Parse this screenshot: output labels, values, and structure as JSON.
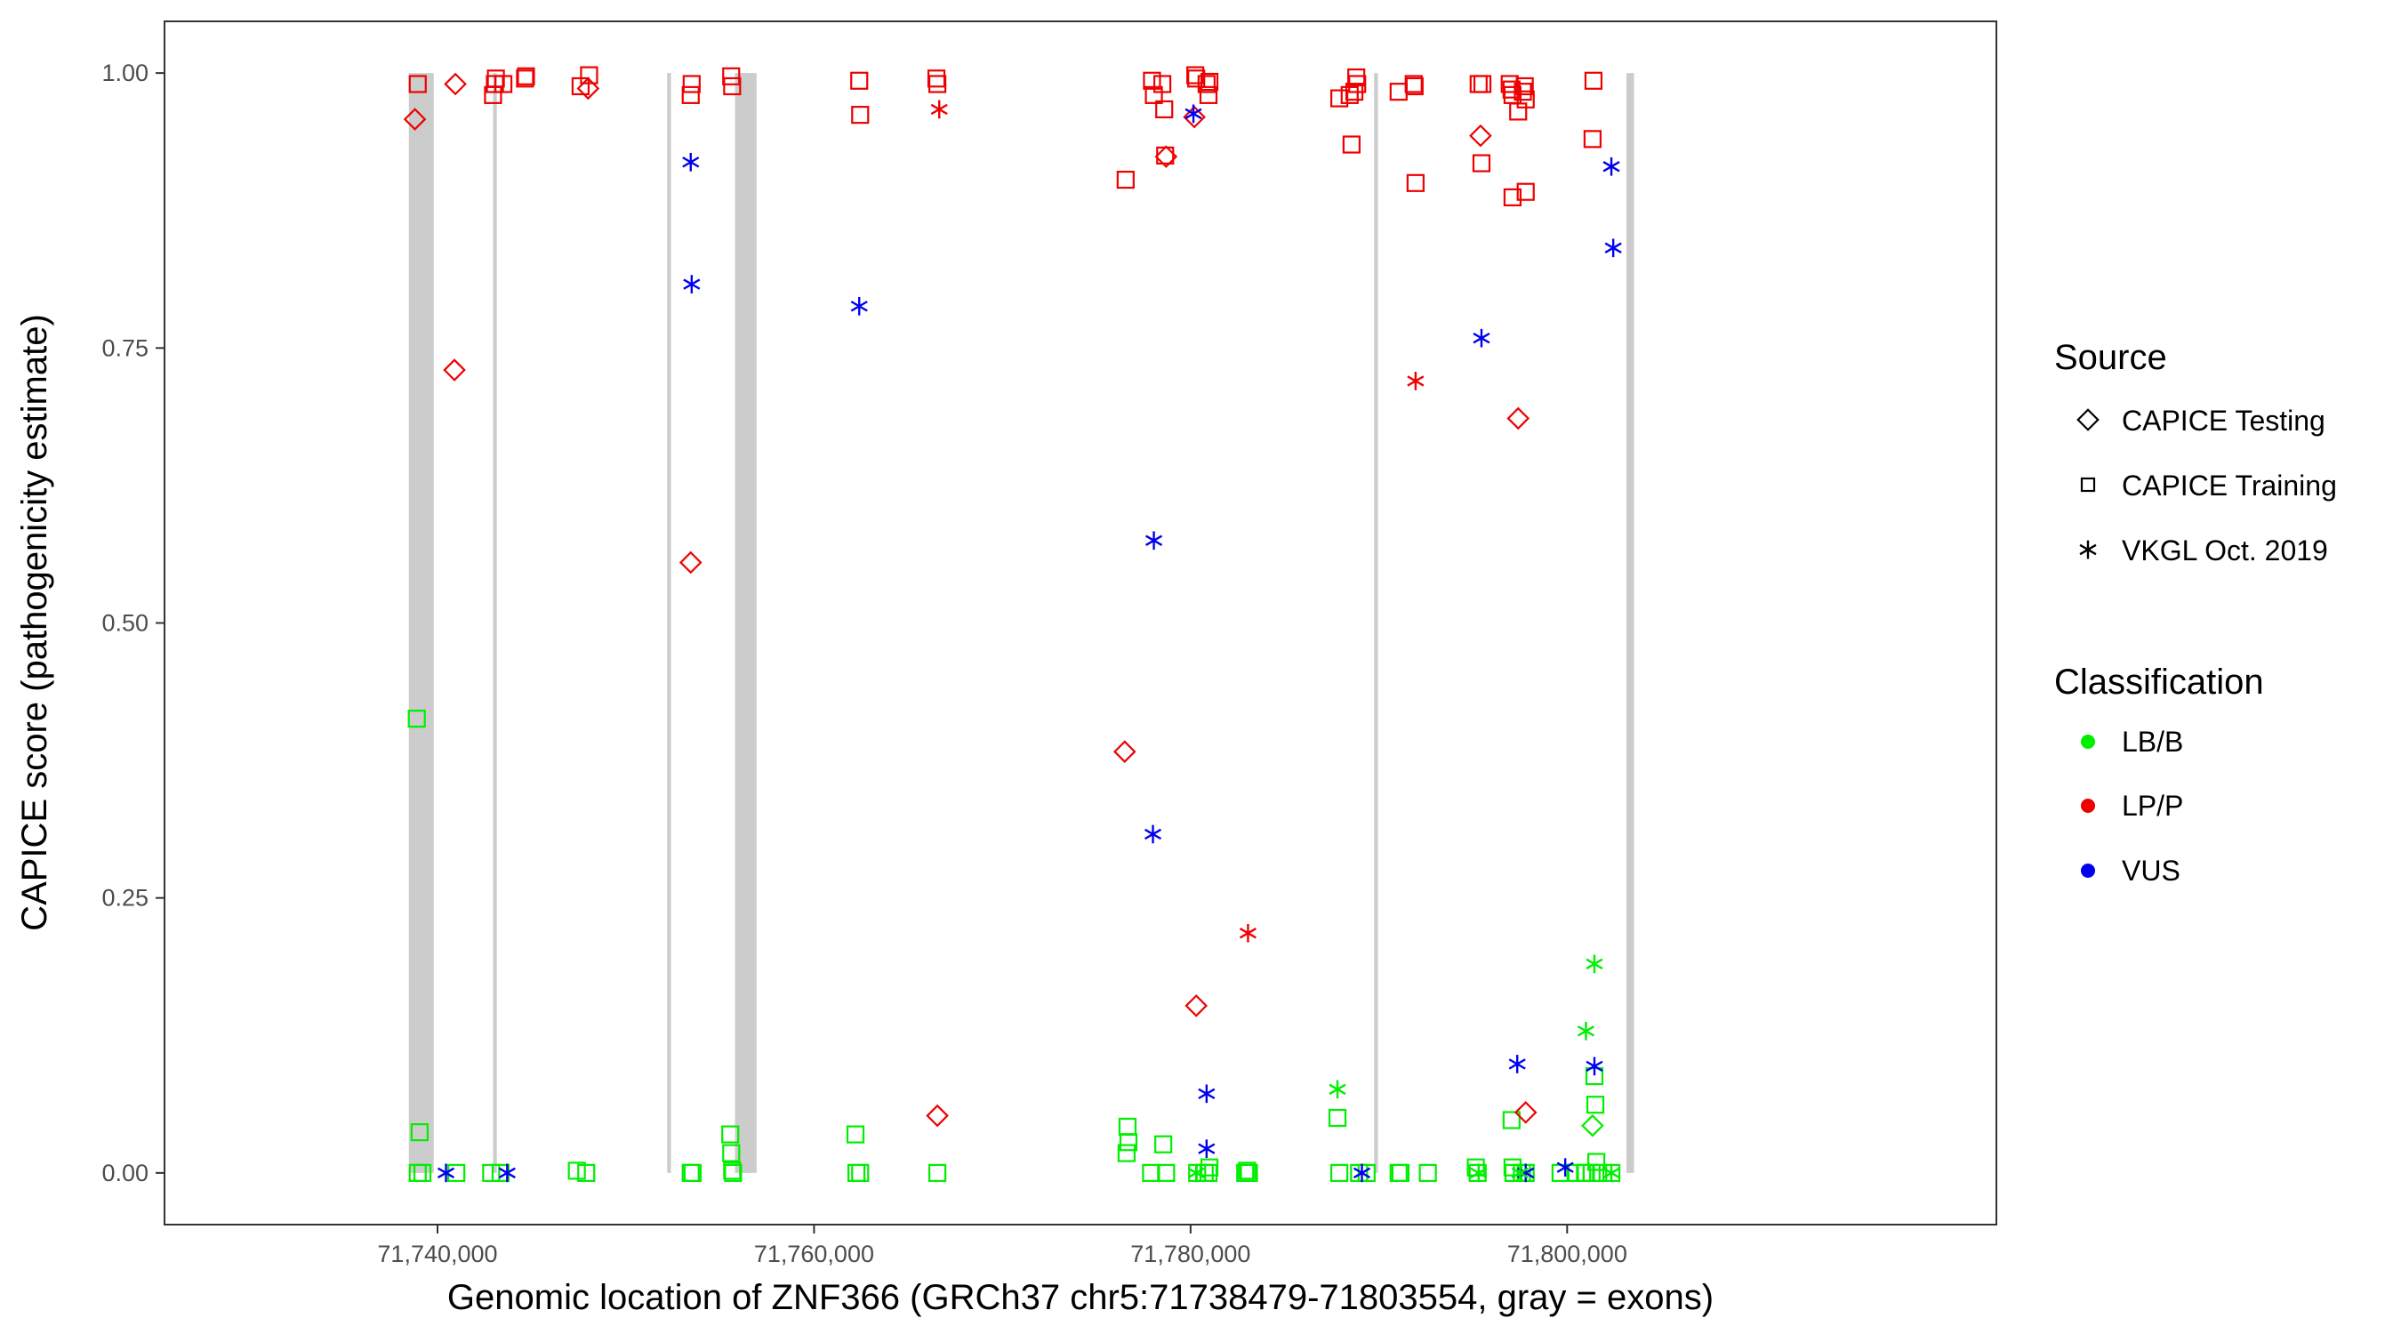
{
  "chart_data": {
    "type": "scatter",
    "title": "",
    "xlabel": "Genomic location of ZNF366 (GRCh37 chr5:71738479-71803554, gray = exons)",
    "ylabel": "CAPICE score (pathogenicity estimate)",
    "xlim": [
      71725500,
      71822800
    ],
    "ylim": [
      -0.047,
      1.047
    ],
    "x_ticks": [
      71740000,
      71760000,
      71780000,
      71800000
    ],
    "x_tick_labels": [
      "71,740,000",
      "71,760,000",
      "71,780,000",
      "71,800,000"
    ],
    "y_ticks": [
      0,
      0.25,
      0.5,
      0.75,
      1.0
    ],
    "y_tick_labels": [
      "0.00",
      "0.25",
      "0.50",
      "0.75",
      "1.00"
    ],
    "grid": false,
    "exons": [
      [
        71738479,
        71739800
      ],
      [
        71742950,
        71743150
      ],
      [
        71752200,
        71752400
      ],
      [
        71755800,
        71756950
      ],
      [
        71789750,
        71789950
      ],
      [
        71803150,
        71803554
      ]
    ],
    "legend_position": "right",
    "legend": {
      "source_title": "Source",
      "source_items": [
        {
          "label": "CAPICE Testing",
          "shape": "diamond"
        },
        {
          "label": "CAPICE Training",
          "shape": "square"
        },
        {
          "label": "VKGL Oct. 2019",
          "shape": "asterisk"
        }
      ],
      "class_title": "Classification",
      "class_items": [
        {
          "label": "LB/B",
          "color": "#00ee00"
        },
        {
          "label": "LP/P",
          "color": "#ee0000"
        },
        {
          "label": "VUS",
          "color": "#0000ee"
        }
      ]
    },
    "series": [
      {
        "source": "CAPICE Training",
        "classification": "LP/P",
        "shape": "square",
        "color": "#ee0000",
        "points": [
          [
            71738950,
            0.99
          ],
          [
            71742950,
            0.98
          ],
          [
            71743050,
            0.99
          ],
          [
            71743100,
            0.995
          ],
          [
            71743500,
            0.99
          ],
          [
            71744650,
            0.995
          ],
          [
            71744700,
            0.997
          ],
          [
            71747600,
            0.988
          ],
          [
            71748050,
            0.998
          ],
          [
            71753450,
            0.98
          ],
          [
            71753500,
            0.99
          ],
          [
            71755600,
            0.997
          ],
          [
            71755650,
            0.988
          ],
          [
            71762400,
            0.993
          ],
          [
            71762450,
            0.962
          ],
          [
            71766500,
            0.995
          ],
          [
            71766550,
            0.99
          ],
          [
            71776550,
            0.903
          ],
          [
            71777950,
            0.993
          ],
          [
            71778050,
            0.98
          ],
          [
            71778500,
            0.99
          ],
          [
            71778600,
            0.967
          ],
          [
            71778650,
            0.925
          ],
          [
            71780250,
            0.998
          ],
          [
            71780300,
            0.995
          ],
          [
            71780850,
            0.99
          ],
          [
            71780950,
            0.98
          ],
          [
            71781000,
            0.992
          ],
          [
            71787900,
            0.977
          ],
          [
            71788450,
            0.98
          ],
          [
            71788550,
            0.935
          ],
          [
            71788700,
            0.983
          ],
          [
            71788800,
            0.996
          ],
          [
            71788850,
            0.99
          ],
          [
            71791050,
            0.983
          ],
          [
            71791850,
            0.99
          ],
          [
            71791900,
            0.988
          ],
          [
            71791950,
            0.9
          ],
          [
            71795300,
            0.99
          ],
          [
            71795450,
            0.918
          ],
          [
            71795500,
            0.99
          ],
          [
            71796950,
            0.99
          ],
          [
            71797050,
            0.985
          ],
          [
            71797100,
            0.98
          ],
          [
            71797100,
            0.887
          ],
          [
            71797400,
            0.965
          ],
          [
            71797650,
            0.983
          ],
          [
            71797750,
            0.988
          ],
          [
            71797800,
            0.976
          ],
          [
            71797800,
            0.892
          ],
          [
            71801350,
            0.94
          ],
          [
            71801400,
            0.993
          ]
        ]
      },
      {
        "source": "CAPICE Training",
        "classification": "LB/B",
        "shape": "square",
        "color": "#00ee00",
        "points": [
          [
            71738900,
            0.413
          ],
          [
            71739050,
            0.037
          ],
          [
            71738950,
            0.0
          ],
          [
            71739200,
            0.0
          ],
          [
            71741000,
            0.0
          ],
          [
            71742850,
            0.0
          ],
          [
            71743350,
            0.0
          ],
          [
            71747400,
            0.002
          ],
          [
            71747900,
            0.0
          ],
          [
            71753450,
            0.0
          ],
          [
            71753550,
            0.0
          ],
          [
            71755550,
            0.035
          ],
          [
            71755600,
            0.018
          ],
          [
            71755650,
            0.002
          ],
          [
            71755700,
            0.0
          ],
          [
            71762200,
            0.035
          ],
          [
            71762250,
            0.0
          ],
          [
            71762450,
            0.0
          ],
          [
            71766550,
            0.0
          ],
          [
            71776650,
            0.042
          ],
          [
            71776700,
            0.028
          ],
          [
            71776600,
            0.018
          ],
          [
            71777900,
            0.0
          ],
          [
            71778550,
            0.026
          ],
          [
            71778700,
            0.0
          ],
          [
            71780350,
            0.0
          ],
          [
            71780750,
            0.0
          ],
          [
            71780950,
            0.0
          ],
          [
            71781000,
            0.005
          ],
          [
            71782900,
            0.0
          ],
          [
            71783000,
            0.002
          ],
          [
            71783100,
            0.0
          ],
          [
            71787800,
            0.05
          ],
          [
            71787900,
            0.0
          ],
          [
            71788950,
            0.0
          ],
          [
            71789350,
            0.0
          ],
          [
            71791050,
            0.0
          ],
          [
            71791150,
            0.0
          ],
          [
            71792600,
            0.0
          ],
          [
            71795150,
            0.005
          ],
          [
            71795250,
            0.0
          ],
          [
            71797050,
            0.048
          ],
          [
            71797100,
            0.005
          ],
          [
            71797150,
            0.0
          ],
          [
            71797600,
            0.0
          ],
          [
            71797800,
            0.0
          ],
          [
            71799650,
            0.0
          ],
          [
            71800450,
            0.0
          ],
          [
            71800950,
            0.0
          ],
          [
            71801000,
            0.0
          ],
          [
            71801300,
            0.0
          ],
          [
            71801450,
            0.088
          ],
          [
            71801500,
            0.062
          ],
          [
            71801550,
            0.01
          ],
          [
            71801650,
            0.0
          ],
          [
            71802350,
            0.0
          ]
        ]
      },
      {
        "source": "CAPICE Testing",
        "classification": "LP/P",
        "shape": "diamond",
        "color": "#ee0000",
        "points": [
          [
            71738800,
            0.958
          ],
          [
            71740950,
            0.99
          ],
          [
            71740900,
            0.73
          ],
          [
            71748000,
            0.986
          ],
          [
            71753450,
            0.555
          ],
          [
            71766550,
            0.052
          ],
          [
            71776500,
            0.383
          ],
          [
            71778700,
            0.924
          ],
          [
            71780200,
            0.96
          ],
          [
            71780300,
            0.152
          ],
          [
            71795400,
            0.943
          ],
          [
            71797400,
            0.686
          ],
          [
            71797800,
            0.055
          ]
        ]
      },
      {
        "source": "CAPICE Testing",
        "classification": "LB/B",
        "shape": "diamond",
        "color": "#00ee00",
        "points": [
          [
            71801350,
            0.043
          ]
        ]
      },
      {
        "source": "VKGL Oct. 2019",
        "classification": "LP/P",
        "shape": "asterisk",
        "color": "#ee0000",
        "points": [
          [
            71766650,
            0.967
          ],
          [
            71783050,
            0.218
          ],
          [
            71791950,
            0.72
          ]
        ]
      },
      {
        "source": "VKGL Oct. 2019",
        "classification": "VUS",
        "shape": "asterisk",
        "color": "#0000ee",
        "points": [
          [
            71740450,
            0.0
          ],
          [
            71743700,
            0.0
          ],
          [
            71753450,
            0.919
          ],
          [
            71753500,
            0.808
          ],
          [
            71762400,
            0.788
          ],
          [
            71778050,
            0.575
          ],
          [
            71778000,
            0.308
          ],
          [
            71780150,
            0.963
          ],
          [
            71780850,
            0.072
          ],
          [
            71780850,
            0.022
          ],
          [
            71789100,
            0.0
          ],
          [
            71795450,
            0.759
          ],
          [
            71797350,
            0.099
          ],
          [
            71797800,
            0.0
          ],
          [
            71799900,
            0.005
          ],
          [
            71801450,
            0.097
          ],
          [
            71802350,
            0.915
          ],
          [
            71802450,
            0.841
          ]
        ]
      },
      {
        "source": "VKGL Oct. 2019",
        "classification": "LB/B",
        "shape": "asterisk",
        "color": "#00ee00",
        "points": [
          [
            71780300,
            0.0
          ],
          [
            71787800,
            0.076
          ],
          [
            71795300,
            0.0
          ],
          [
            71797500,
            0.0
          ],
          [
            71801000,
            0.129
          ],
          [
            71801450,
            0.19
          ],
          [
            71802350,
            0.0
          ]
        ]
      }
    ]
  }
}
